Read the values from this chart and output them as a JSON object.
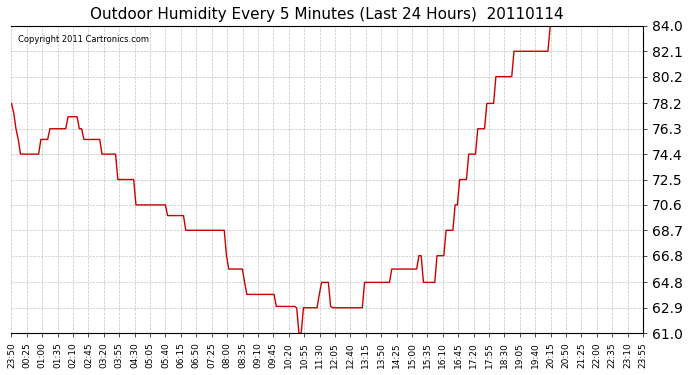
{
  "title": "Outdoor Humidity Every 5 Minutes (Last 24 Hours)  20110114",
  "copyright": "Copyright 2011 Cartronics.com",
  "line_color": "#cc0000",
  "background_color": "#ffffff",
  "grid_color": "#aaaaaa",
  "ylim": [
    61.0,
    84.0
  ],
  "yticks": [
    61.0,
    62.9,
    64.8,
    66.8,
    68.7,
    70.6,
    72.5,
    74.4,
    76.3,
    78.2,
    80.2,
    82.1,
    84.0
  ],
  "xtick_labels": [
    "23:50",
    "00:25",
    "01:00",
    "01:35",
    "02:10",
    "02:45",
    "03:20",
    "03:55",
    "04:30",
    "05:05",
    "05:40",
    "06:15",
    "06:50",
    "07:25",
    "08:00",
    "08:35",
    "09:10",
    "09:45",
    "10:20",
    "10:55",
    "11:30",
    "12:05",
    "12:40",
    "13:15",
    "13:50",
    "14:25",
    "15:00",
    "15:35",
    "16:10",
    "16:45",
    "17:20",
    "17:55",
    "18:30",
    "19:05",
    "19:40",
    "20:15",
    "20:50",
    "21:25",
    "22:00",
    "22:35",
    "23:10",
    "23:55"
  ],
  "humidity_values": [
    78.2,
    77.5,
    76.3,
    75.5,
    74.4,
    74.4,
    74.4,
    74.4,
    74.4,
    74.4,
    74.4,
    74.4,
    74.4,
    75.5,
    75.5,
    75.5,
    75.5,
    76.3,
    76.3,
    76.3,
    76.3,
    76.3,
    76.3,
    76.3,
    76.3,
    77.2,
    77.2,
    77.2,
    77.2,
    77.2,
    76.3,
    76.3,
    75.5,
    75.5,
    75.5,
    75.5,
    75.5,
    75.5,
    75.5,
    75.5,
    74.4,
    74.4,
    74.4,
    74.4,
    74.4,
    74.4,
    74.4,
    72.5,
    72.5,
    72.5,
    72.5,
    72.5,
    72.5,
    72.5,
    72.5,
    70.6,
    70.6,
    70.6,
    70.6,
    70.6,
    70.6,
    70.6,
    70.6,
    70.6,
    70.6,
    70.6,
    70.6,
    70.6,
    70.6,
    69.8,
    69.8,
    69.8,
    69.8,
    69.8,
    69.8,
    69.8,
    69.8,
    68.7,
    68.7,
    68.7,
    68.7,
    68.7,
    68.7,
    68.7,
    68.7,
    68.7,
    68.7,
    68.7,
    68.7,
    68.7,
    68.7,
    68.7,
    68.7,
    68.7,
    68.7,
    66.8,
    65.8,
    65.8,
    65.8,
    65.8,
    65.8,
    65.8,
    65.8,
    64.8,
    63.9,
    63.9,
    63.9,
    63.9,
    63.9,
    63.9,
    63.9,
    63.9,
    63.9,
    63.9,
    63.9,
    63.9,
    63.9,
    63.0,
    63.0,
    63.0,
    63.0,
    63.0,
    63.0,
    63.0,
    63.0,
    63.0,
    62.9,
    61.0,
    61.0,
    62.9,
    62.9,
    62.9,
    62.9,
    62.9,
    62.9,
    62.9,
    63.9,
    64.8,
    64.8,
    64.8,
    64.8,
    63.0,
    62.9,
    62.9,
    62.9,
    62.9,
    62.9,
    62.9,
    62.9,
    62.9,
    62.9,
    62.9,
    62.9,
    62.9,
    62.9,
    62.9,
    64.8,
    64.8,
    64.8,
    64.8,
    64.8,
    64.8,
    64.8,
    64.8,
    64.8,
    64.8,
    64.8,
    64.8,
    65.8,
    65.8,
    65.8,
    65.8,
    65.8,
    65.8,
    65.8,
    65.8,
    65.8,
    65.8,
    65.8,
    65.8,
    66.8,
    66.8,
    64.8,
    64.8,
    64.8,
    64.8,
    64.8,
    64.8,
    66.8,
    66.8,
    66.8,
    66.8,
    68.7,
    68.7,
    68.7,
    68.7,
    70.6,
    70.6,
    72.5,
    72.5,
    72.5,
    72.5,
    74.4,
    74.4,
    74.4,
    74.4,
    76.3,
    76.3,
    76.3,
    76.3,
    78.2,
    78.2,
    78.2,
    78.2,
    80.2,
    80.2,
    80.2,
    80.2,
    80.2,
    80.2,
    80.2,
    80.2,
    82.1,
    82.1,
    82.1,
    82.1,
    82.1,
    82.1,
    82.1,
    82.1,
    82.1,
    82.1,
    82.1,
    82.1,
    82.1,
    82.1,
    82.1,
    82.1,
    84.0,
    84.0,
    84.0,
    84.0,
    84.0,
    84.0,
    84.0,
    84.0,
    84.0,
    84.0,
    84.0,
    84.0,
    84.0,
    84.0,
    84.0,
    84.0,
    84.0,
    84.0,
    84.0,
    84.0,
    84.0,
    84.0,
    84.0,
    84.0,
    84.0,
    84.0,
    84.0,
    84.0,
    84.0,
    84.0,
    84.0,
    84.0,
    84.0,
    84.0,
    84.0,
    84.0,
    84.0,
    84.0,
    84.0,
    84.0,
    84.0,
    84.0
  ]
}
